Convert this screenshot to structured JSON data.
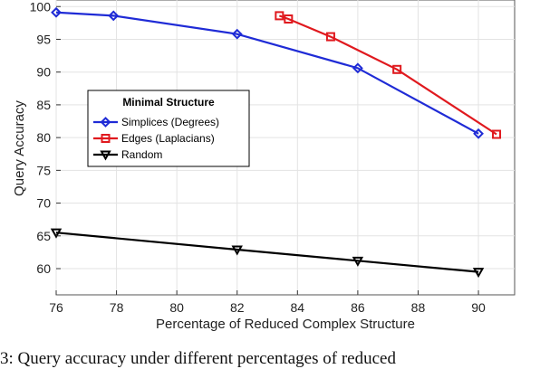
{
  "chart_data": {
    "type": "line",
    "xlabel": "Percentage of Reduced Complex Structure",
    "ylabel": "Query Accuracy",
    "xlim": [
      76,
      91.2
    ],
    "ylim": [
      56,
      101
    ],
    "xticks": [
      76,
      78,
      80,
      82,
      84,
      86,
      88,
      90
    ],
    "yticks": [
      60,
      65,
      70,
      75,
      80,
      85,
      90,
      95,
      100
    ],
    "legend_title": "Minimal Structure",
    "legend_position": "center-left",
    "series": [
      {
        "name": "Simplices (Degrees)",
        "color": "#1f2bd6",
        "marker": "diamond",
        "points": [
          [
            76.0,
            99.1
          ],
          [
            77.9,
            98.6
          ],
          [
            82.0,
            95.8
          ],
          [
            86.0,
            90.6
          ],
          [
            90.0,
            80.6
          ]
        ]
      },
      {
        "name": "Edges (Laplacians)",
        "color": "#e0191e",
        "marker": "square",
        "points": [
          [
            83.4,
            98.6
          ],
          [
            83.7,
            98.1
          ],
          [
            85.1,
            95.4
          ],
          [
            87.3,
            90.4
          ],
          [
            90.6,
            80.5
          ]
        ]
      },
      {
        "name": "Random",
        "color": "#000000",
        "marker": "triangle-down",
        "points": [
          [
            76.0,
            65.5
          ],
          [
            82.0,
            62.9
          ],
          [
            86.0,
            61.2
          ],
          [
            90.0,
            59.5
          ]
        ]
      }
    ]
  },
  "caption": "3: Query accuracy under different percentages of reduced"
}
